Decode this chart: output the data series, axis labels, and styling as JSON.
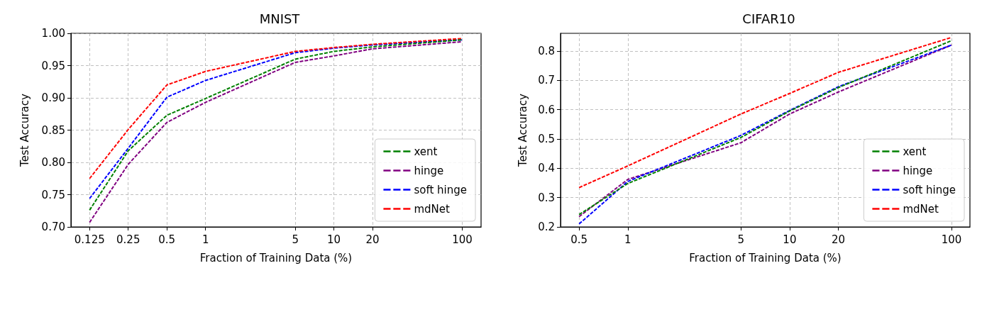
{
  "chart_data": [
    {
      "type": "line",
      "title": "MNIST",
      "xlabel": "Fraction of Training Data (%)",
      "ylabel": "Test Accuracy",
      "log": "x",
      "grid": true,
      "legend": "bottom right",
      "marker": "none",
      "line_style": "dashed",
      "x": [
        0.125,
        0.25,
        0.5,
        1,
        5,
        10,
        20,
        100
      ],
      "series": [
        {
          "name": "xent",
          "color": "#008000",
          "values": [
            0.726,
            0.818,
            0.873,
            0.899,
            0.96,
            0.972,
            0.979,
            0.99
          ]
        },
        {
          "name": "hinge",
          "color": "#800080",
          "values": [
            0.707,
            0.797,
            0.862,
            0.893,
            0.955,
            0.965,
            0.976,
            0.987
          ]
        },
        {
          "name": "soft hinge",
          "color": "#0000ff",
          "values": [
            0.744,
            0.822,
            0.901,
            0.927,
            0.97,
            0.977,
            0.982,
            0.99
          ]
        },
        {
          "name": "mdNet",
          "color": "#ff0000",
          "values": [
            0.775,
            0.851,
            0.92,
            0.941,
            0.972,
            0.978,
            0.983,
            0.992
          ]
        }
      ],
      "xlim": [
        0.0895,
        140
      ],
      "xticks": [
        0.125,
        0.25,
        0.5,
        1,
        5,
        10,
        20,
        100
      ],
      "ylim": [
        0.7,
        1.0
      ],
      "yticks": [
        {
          "value": 0.7,
          "label": "0.70"
        },
        {
          "value": 0.75,
          "label": "0.75"
        },
        {
          "value": 0.8,
          "label": "0.80"
        },
        {
          "value": 0.85,
          "label": "0.85"
        },
        {
          "value": 0.9,
          "label": "0.90"
        },
        {
          "value": 0.95,
          "label": "0.95"
        },
        {
          "value": 1.0,
          "label": "1.00"
        }
      ]
    },
    {
      "type": "line",
      "title": "CIFAR10",
      "xlabel": "Fraction of Training Data (%)",
      "ylabel": "Test Accuracy",
      "log": "x",
      "grid": true,
      "legend": "bottom right",
      "marker": "none",
      "line_style": "dashed",
      "x": [
        0.5,
        1,
        5,
        10,
        20,
        100
      ],
      "series": [
        {
          "name": "xent",
          "color": "#008000",
          "values": [
            0.242,
            0.348,
            0.505,
            0.595,
            0.675,
            0.835
          ]
        },
        {
          "name": "hinge",
          "color": "#800080",
          "values": [
            0.235,
            0.362,
            0.487,
            0.585,
            0.66,
            0.82
          ]
        },
        {
          "name": "soft hinge",
          "color": "#0000ff",
          "values": [
            0.21,
            0.355,
            0.512,
            0.597,
            0.678,
            0.82
          ]
        },
        {
          "name": "mdNet",
          "color": "#ff0000",
          "values": [
            0.334,
            0.408,
            0.585,
            0.655,
            0.727,
            0.846
          ]
        }
      ],
      "xlim": [
        0.384,
        130
      ],
      "xticks": [
        0.5,
        1,
        5,
        10,
        20,
        100
      ],
      "ylim": [
        0.2,
        0.86
      ],
      "yticks": [
        0.2,
        0.3,
        0.4,
        0.5,
        0.6,
        0.7,
        0.8
      ]
    }
  ]
}
